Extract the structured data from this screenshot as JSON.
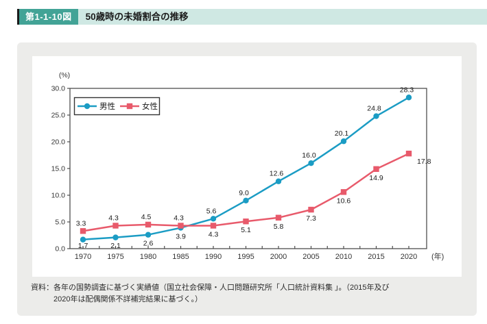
{
  "header": {
    "figure_label": "第1-1-10図",
    "title": "50歳時の未婚割合の推移"
  },
  "footer": {
    "line1": "資料：各年の国勢調査に基づく実績値（国立社会保障・人口問題研究所「人口統計資料集 」。（2015年及び",
    "line2": "2020年は配偶関係不詳補完結果に基づく。）"
  },
  "colors": {
    "male": "#1b9cc4",
    "female": "#e85a6b",
    "badge": "#42a396",
    "header_strip": "#cfe8e3",
    "panel": "#ececea",
    "axis": "#4d4d4d",
    "label_text": "#1a1a1a"
  },
  "chart_data": {
    "type": "line",
    "title": "50歳時の未婚割合の推移",
    "y_unit": "(%)",
    "x_unit": "(年)",
    "categories": [
      "1970",
      "1975",
      "1980",
      "1985",
      "1990",
      "1995",
      "2000",
      "2005",
      "2010",
      "2015",
      "2020"
    ],
    "ylim": [
      0,
      30
    ],
    "ytick_step": 5,
    "ytick_labels": [
      "30.0",
      "25.0",
      "20.0",
      "15.0",
      "10.0",
      "5.0",
      "0.0"
    ],
    "grid": false,
    "legend_position": "top-left",
    "series": [
      {
        "name": "男性",
        "color": "#1b9cc4",
        "marker": "circle",
        "values": [
          1.7,
          2.1,
          2.6,
          3.9,
          5.6,
          9.0,
          12.6,
          16.0,
          20.1,
          24.8,
          28.3
        ],
        "label_side": [
          "below",
          "below",
          "below",
          "below",
          "above",
          "above",
          "above",
          "above",
          "above",
          "above",
          "above"
        ]
      },
      {
        "name": "女性",
        "color": "#e85a6b",
        "marker": "square",
        "values": [
          3.3,
          4.3,
          4.5,
          4.3,
          4.3,
          5.1,
          5.8,
          7.3,
          10.6,
          14.9,
          17.8
        ],
        "label_side": [
          "above",
          "above",
          "above",
          "above",
          "below",
          "below",
          "below",
          "below",
          "below",
          "below",
          "below-right"
        ]
      }
    ]
  }
}
